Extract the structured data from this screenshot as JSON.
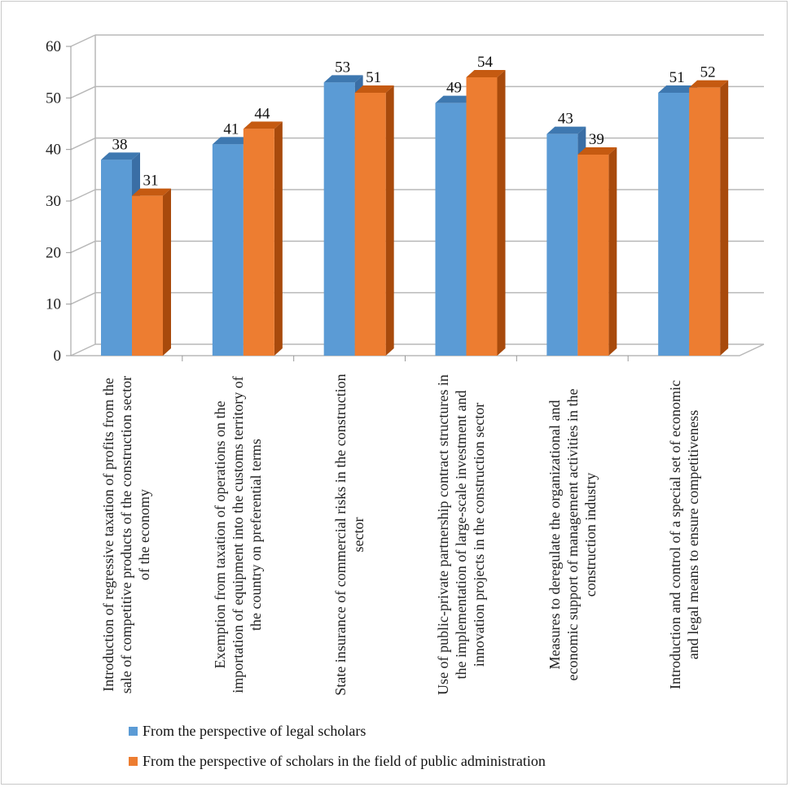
{
  "chart_data": {
    "type": "bar",
    "categories": [
      "Introduction of regressive taxation of profits from the sale of competitive products of the construction sector of the economy",
      "Exemption from taxation of operations on the importation of equipment into the customs territory of the country on preferential terms",
      "State insurance of commercial risks in the construction sector",
      "Use of public-private partnership contract structures in the implementation of large-scale investment and innovation projects in the construction sector",
      "Measures to deregulate the organizational and economic support of management activities in the construction industry",
      "Introduction and control of a special set of economic and legal means to ensure competitiveness"
    ],
    "series": [
      {
        "name": "From the perspective of legal scholars",
        "values": [
          38,
          41,
          53,
          49,
          43,
          51
        ],
        "color": "#5B9BD5",
        "top": "#3E78B0",
        "side": "#3A6EA5"
      },
      {
        "name": "From the perspective of scholars in the field of public administration",
        "values": [
          31,
          44,
          51,
          54,
          39,
          52
        ],
        "color": "#ED7D31",
        "top": "#C55A11",
        "side": "#A84A0C"
      }
    ],
    "yticks": [
      "0",
      "10",
      "20",
      "30",
      "40",
      "50",
      "60"
    ],
    "ylim": [
      0,
      60
    ],
    "grid": true,
    "legend_position": "bottom-left",
    "style": "3d-clustered-column"
  }
}
